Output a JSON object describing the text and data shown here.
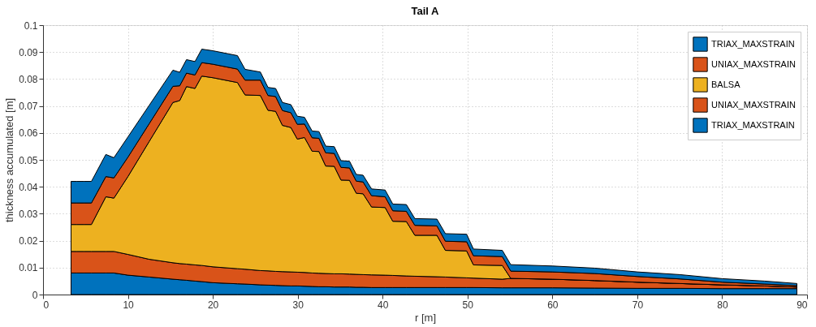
{
  "chart_data": {
    "type": "area",
    "title": "Tail A",
    "xlabel": "r [m]",
    "ylabel": "thickness accumulated [m]",
    "x": [
      3.3,
      4.0,
      4.8,
      5.7,
      7.4,
      8.35,
      10,
      12.5,
      15.3,
      16.1,
      16.9,
      17.9,
      18.7,
      20,
      22.9,
      23.8,
      25.6,
      26.5,
      27.4,
      28.2,
      29.2,
      29.95,
      30.8,
      31.7,
      32.5,
      33.3,
      34.3,
      35.1,
      36.1,
      36.9,
      37.7,
      38.7,
      40.3,
      41.2,
      42.8,
      43.8,
      46.4,
      47.4,
      49.9,
      50.7,
      54.1,
      55.1,
      60,
      65,
      70,
      75,
      80,
      85,
      88.8
    ],
    "stacked": true,
    "series": [
      {
        "name": "TRIAX_MAXSTRAIN",
        "color": "#0072bd",
        "values": [
          0.008,
          0.008,
          0.008,
          0.008,
          0.008,
          0.008,
          0.0072,
          0.0065,
          0.0057,
          0.0055,
          0.0053,
          0.005,
          0.0048,
          0.0044,
          0.004,
          0.0039,
          0.0036,
          0.0035,
          0.0034,
          0.0033,
          0.0032,
          0.0032,
          0.0031,
          0.003,
          0.0029,
          0.0029,
          0.0028,
          0.0028,
          0.0028,
          0.0027,
          0.0027,
          0.0026,
          0.0026,
          0.0026,
          0.0026,
          0.0026,
          0.0026,
          0.0026,
          0.0026,
          0.0026,
          0.0025,
          0.0025,
          0.0025,
          0.0024,
          0.0023,
          0.0023,
          0.0022,
          0.0022,
          0.0022
        ]
      },
      {
        "name": "UNIAX_MAXSTRAIN",
        "color": "#d95319",
        "values": [
          0.008,
          0.008,
          0.008,
          0.008,
          0.008,
          0.008,
          0.0077,
          0.0066,
          0.0061,
          0.006,
          0.006,
          0.006,
          0.006,
          0.0059,
          0.0056,
          0.0055,
          0.0053,
          0.0053,
          0.0052,
          0.0052,
          0.0052,
          0.0051,
          0.0051,
          0.005,
          0.005,
          0.0049,
          0.0049,
          0.0049,
          0.0048,
          0.0048,
          0.0047,
          0.0047,
          0.0046,
          0.0045,
          0.0043,
          0.0042,
          0.004,
          0.0039,
          0.0036,
          0.0035,
          0.0032,
          0.0035,
          0.0032,
          0.0028,
          0.0023,
          0.0018,
          0.0014,
          0.001,
          0.0006
        ]
      },
      {
        "name": "BALSA",
        "color": "#edb120",
        "values": [
          0.01,
          0.01,
          0.01,
          0.01,
          0.0203,
          0.0198,
          0.0289,
          0.0437,
          0.0595,
          0.0605,
          0.0659,
          0.0655,
          0.0703,
          0.0702,
          0.0691,
          0.0647,
          0.065,
          0.0596,
          0.0594,
          0.0543,
          0.0536,
          0.0494,
          0.0501,
          0.0452,
          0.0452,
          0.0399,
          0.0399,
          0.0348,
          0.0348,
          0.0301,
          0.03,
          0.0252,
          0.0251,
          0.0201,
          0.0202,
          0.0152,
          0.0154,
          0.0099,
          0.01,
          0.0049,
          0.0051,
          0,
          0,
          0,
          0,
          0,
          0,
          0,
          0
        ]
      },
      {
        "name": "UNIAX_MAXSTRAIN",
        "color": "#d95319",
        "values": [
          0.008,
          0.008,
          0.008,
          0.008,
          0.0075,
          0.0075,
          0.0072,
          0.0066,
          0.006,
          0.0055,
          0.005,
          0.005,
          0.005,
          0.005,
          0.005,
          0.0055,
          0.0057,
          0.0055,
          0.0055,
          0.0055,
          0.0055,
          0.0055,
          0.005,
          0.005,
          0.0049,
          0.0049,
          0.0048,
          0.0047,
          0.0046,
          0.0045,
          0.0044,
          0.0042,
          0.004,
          0.0039,
          0.0038,
          0.0037,
          0.0035,
          0.0034,
          0.0034,
          0.0034,
          0.0033,
          0.0027,
          0.0027,
          0.0026,
          0.0021,
          0.0017,
          0.001,
          0.0007,
          0.0005
        ]
      },
      {
        "name": "TRIAX_MAXSTRAIN",
        "color": "#0072bd",
        "values": [
          0.008,
          0.008,
          0.008,
          0.008,
          0.0082,
          0.0075,
          0.0075,
          0.0068,
          0.006,
          0.005,
          0.005,
          0.005,
          0.005,
          0.005,
          0.005,
          0.004,
          0.003,
          0.003,
          0.003,
          0.003,
          0.003,
          0.003,
          0.0025,
          0.0025,
          0.0025,
          0.0025,
          0.0025,
          0.0025,
          0.0025,
          0.0025,
          0.0025,
          0.0025,
          0.0025,
          0.0025,
          0.0025,
          0.0025,
          0.0025,
          0.0028,
          0.0028,
          0.0025,
          0.0023,
          0.0024,
          0.0022,
          0.002,
          0.0017,
          0.0016,
          0.0013,
          0.0011,
          0.0008
        ]
      }
    ],
    "xlim": [
      0,
      90
    ],
    "xticks": [
      0,
      10,
      20,
      30,
      40,
      50,
      60,
      70,
      80,
      90
    ],
    "ylim": [
      0,
      0.1
    ],
    "yticks": [
      0,
      0.01,
      0.02,
      0.03,
      0.04,
      0.05,
      0.06,
      0.07,
      0.08,
      0.09,
      0.1
    ],
    "grid": true,
    "legend": "top right"
  }
}
